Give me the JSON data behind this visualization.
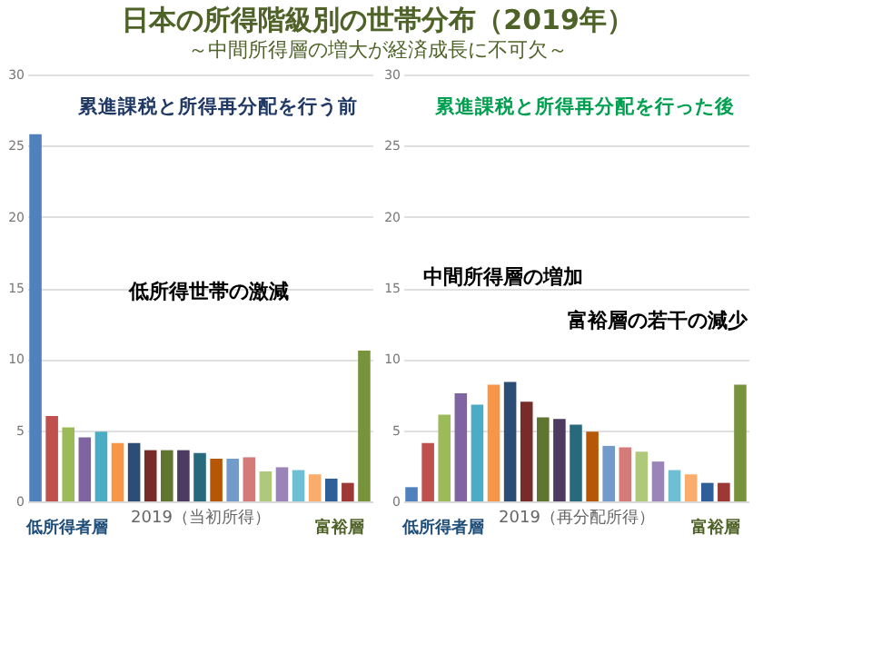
{
  "chart_data": [
    {
      "type": "bar",
      "title": "日本の所得階級別の世帯分布（2019年）",
      "subtitle": "～中間所得層の増大が経済成長に不可欠～",
      "xlabel": "2019（当初所得）",
      "categories": [
        null,
        null,
        null,
        null,
        null,
        null,
        null,
        null,
        null,
        null,
        null,
        null,
        null,
        null,
        null,
        null,
        null,
        null,
        null,
        null,
        null
      ],
      "values": [
        25.8,
        6.0,
        5.2,
        4.5,
        4.9,
        4.1,
        4.1,
        3.6,
        3.6,
        3.6,
        3.4,
        3.0,
        3.0,
        3.1,
        2.1,
        2.4,
        2.2,
        1.9,
        1.6,
        1.3,
        10.6
      ],
      "colors": [
        "#4f81bd",
        "#c0504d",
        "#9bbb59",
        "#8064a2",
        "#4bacc6",
        "#f79646",
        "#2c4d75",
        "#772c2a",
        "#5f7530",
        "#4d3b62",
        "#276a7c",
        "#b65708",
        "#729aca",
        "#d47b79",
        "#afc97a",
        "#9b84b8",
        "#6fbfd4",
        "#f9ac6b",
        "#2f5f98",
        "#9e3835",
        "#77933c"
      ],
      "ylim": [
        0,
        30
      ],
      "yticks": [
        0,
        5,
        10,
        15,
        20,
        25,
        30
      ],
      "grid": "y",
      "tick_labels": "y",
      "annotations": [
        "累進課税と所得再分配を行う前",
        "低所得世帯の激減",
        "低所得者層",
        "富裕層"
      ]
    },
    {
      "type": "bar",
      "xlabel": "2019（再分配所得）",
      "categories": [
        null,
        null,
        null,
        null,
        null,
        null,
        null,
        null,
        null,
        null,
        null,
        null,
        null,
        null,
        null,
        null,
        null,
        null,
        null,
        null,
        null
      ],
      "values": [
        1.0,
        4.1,
        6.1,
        7.6,
        6.8,
        8.2,
        8.4,
        7.0,
        5.9,
        5.8,
        5.4,
        4.9,
        3.9,
        3.8,
        3.5,
        2.8,
        2.2,
        1.9,
        1.3,
        1.3,
        8.2
      ],
      "colors": [
        "#4f81bd",
        "#c0504d",
        "#9bbb59",
        "#8064a2",
        "#4bacc6",
        "#f79646",
        "#2c4d75",
        "#772c2a",
        "#5f7530",
        "#4d3b62",
        "#276a7c",
        "#b65708",
        "#729aca",
        "#d47b79",
        "#afc97a",
        "#9b84b8",
        "#6fbfd4",
        "#f9ac6b",
        "#2f5f98",
        "#9e3835",
        "#77933c"
      ],
      "ylim": [
        0,
        30
      ],
      "yticks": [
        0,
        5,
        10,
        15,
        20,
        25,
        30
      ],
      "grid": "y",
      "tick_labels": "y",
      "annotations": [
        "累進課税と所得再分配を行った後",
        "中間所得層の増加",
        "富裕層の若干の減少",
        "低所得者層",
        "富裕層"
      ]
    }
  ]
}
